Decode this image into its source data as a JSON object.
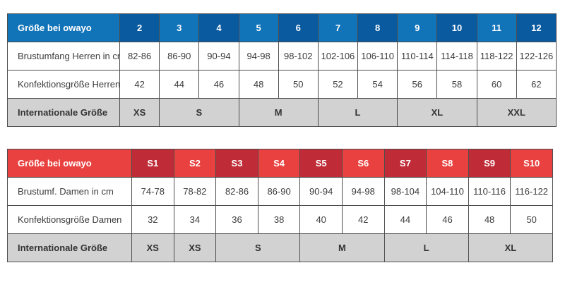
{
  "colors": {
    "border": "#4d4d4d",
    "text": "#3b3b3b",
    "header_text": "#ffffff",
    "gray_row": "#d2d2d2",
    "blue_light": "#1173b8",
    "blue_dark": "#0a5aa0",
    "red_light": "#e8413f",
    "red_dark": "#bf2b36"
  },
  "chart_data": [
    {
      "type": "table",
      "name": "herren-sizes",
      "colors": {
        "header_light": "#1173b8",
        "header_dark": "#0a5aa0"
      },
      "header": {
        "label": "Größe bei owayo",
        "sizes": [
          "2",
          "3",
          "4",
          "5",
          "6",
          "7",
          "8",
          "9",
          "10",
          "11",
          "12"
        ]
      },
      "rows": [
        {
          "label": "Brustumfang Herren in cm",
          "values": [
            "82-86",
            "86-90",
            "90-94",
            "94-98",
            "98-102",
            "102-106",
            "106-110",
            "110-114",
            "114-118",
            "118-122",
            "122-126"
          ]
        },
        {
          "label": "Konfektionsgröße Herren",
          "values": [
            "42",
            "44",
            "46",
            "48",
            "50",
            "52",
            "54",
            "56",
            "58",
            "60",
            "62"
          ]
        }
      ],
      "intl_row": {
        "label": "Internationale Größe",
        "cells": [
          {
            "text": "XS",
            "span": 1
          },
          {
            "text": "S",
            "span": 2
          },
          {
            "text": "M",
            "span": 2
          },
          {
            "text": "L",
            "span": 2
          },
          {
            "text": "XL",
            "span": 2
          },
          {
            "text": "XXL",
            "span": 2
          }
        ]
      }
    },
    {
      "type": "table",
      "name": "damen-sizes",
      "colors": {
        "header_light": "#e8413f",
        "header_dark": "#bf2b36"
      },
      "header": {
        "label": "Größe bei owayo",
        "sizes": [
          "S1",
          "S2",
          "S3",
          "S4",
          "S5",
          "S6",
          "S7",
          "S8",
          "S9",
          "S10"
        ]
      },
      "rows": [
        {
          "label": "Brustumf. Damen in cm",
          "values": [
            "74-78",
            "78-82",
            "82-86",
            "86-90",
            "90-94",
            "94-98",
            "98-104",
            "104-110",
            "110-116",
            "116-122"
          ]
        },
        {
          "label": "Konfektionsgröße Damen",
          "values": [
            "32",
            "34",
            "36",
            "38",
            "40",
            "42",
            "44",
            "46",
            "48",
            "50"
          ]
        }
      ],
      "intl_row": {
        "label": "Internationale Größe",
        "cells": [
          {
            "text": "XS",
            "span": 1
          },
          {
            "text": "XS",
            "span": 1
          },
          {
            "text": "S",
            "span": 2
          },
          {
            "text": "M",
            "span": 2
          },
          {
            "text": "L",
            "span": 2
          },
          {
            "text": "XL",
            "span": 2
          }
        ]
      }
    }
  ]
}
